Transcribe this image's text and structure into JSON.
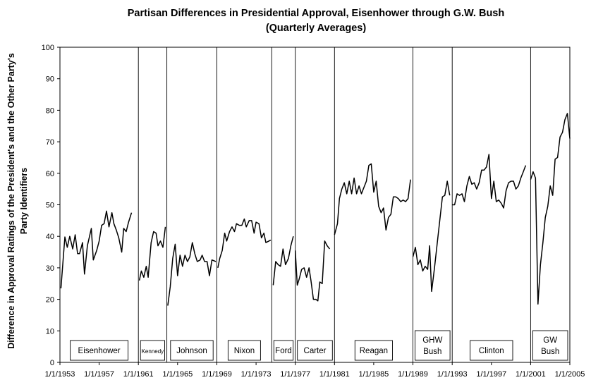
{
  "chart_data": {
    "type": "line",
    "title": "Partisan Differences in Presidential Approval, Eisenhower through G.W. Bush",
    "subtitle": "(Quarterly Averages)",
    "ylabel_line1": "Difference in Approval Ratings of the President's and the Other Party's",
    "ylabel_line2": "Party Identifiers",
    "ylim": [
      0,
      100
    ],
    "yticks": [
      0,
      10,
      20,
      30,
      40,
      50,
      60,
      70,
      80,
      90,
      100
    ],
    "xlim": [
      1953,
      2005
    ],
    "xticks": [
      {
        "value": 1953,
        "label": "1/1/1953"
      },
      {
        "value": 1957,
        "label": "1/1/1957"
      },
      {
        "value": 1961,
        "label": "1/1/1961"
      },
      {
        "value": 1965,
        "label": "1/1/1965"
      },
      {
        "value": 1969,
        "label": "1/1/1969"
      },
      {
        "value": 1973,
        "label": "1/1/1973"
      },
      {
        "value": 1977,
        "label": "1/1/1977"
      },
      {
        "value": 1981,
        "label": "1/1/1981"
      },
      {
        "value": 1985,
        "label": "1/1/1985"
      },
      {
        "value": 1989,
        "label": "1/1/1989"
      },
      {
        "value": 1993,
        "label": "1/1/1993"
      },
      {
        "value": 1997,
        "label": "1/1/1997"
      },
      {
        "value": 2001,
        "label": "1/1/2001"
      },
      {
        "value": 2005,
        "label": "1/1/2005"
      }
    ],
    "dividers": [
      1961,
      1963.9,
      1969,
      1974.6,
      1977,
      1981,
      1989,
      1993,
      2001
    ],
    "presidents": [
      {
        "name": "Eisenhower",
        "start": 1953,
        "end": 1961
      },
      {
        "name": "Kennedy",
        "start": 1961,
        "end": 1963.9
      },
      {
        "name": "Johnson",
        "start": 1963.9,
        "end": 1969
      },
      {
        "name": "Nixon",
        "start": 1969,
        "end": 1974.6
      },
      {
        "name": "Ford",
        "start": 1974.6,
        "end": 1977
      },
      {
        "name": "Carter",
        "start": 1977,
        "end": 1981
      },
      {
        "name": "Reagan",
        "start": 1981,
        "end": 1989
      },
      {
        "name": "GHW Bush",
        "start": 1989,
        "end": 1993
      },
      {
        "name": "Clinton",
        "start": 1993,
        "end": 2001
      },
      {
        "name": "GW Bush",
        "start": 2001,
        "end": 2005
      }
    ],
    "segments": [
      {
        "president": "Eisenhower",
        "points": [
          [
            1953.1,
            23.5
          ],
          [
            1953.5,
            39.8
          ],
          [
            1953.75,
            36.5
          ],
          [
            1954.0,
            40.0
          ],
          [
            1954.3,
            36.0
          ],
          [
            1954.55,
            40.5
          ],
          [
            1954.8,
            34.5
          ],
          [
            1955.0,
            34.5
          ],
          [
            1955.3,
            38.0
          ],
          [
            1955.5,
            28.0
          ],
          [
            1955.8,
            37.0
          ],
          [
            1956.2,
            42.5
          ],
          [
            1956.4,
            32.5
          ],
          [
            1956.75,
            35.5
          ],
          [
            1957.0,
            38.5
          ],
          [
            1957.25,
            43.5
          ],
          [
            1957.5,
            44.0
          ],
          [
            1957.75,
            48.0
          ],
          [
            1958.0,
            43.0
          ],
          [
            1958.3,
            47.5
          ],
          [
            1958.5,
            44.0
          ],
          [
            1958.75,
            42.0
          ],
          [
            1959.0,
            39.5
          ],
          [
            1959.3,
            35.0
          ],
          [
            1959.5,
            42.5
          ],
          [
            1959.75,
            41.5
          ],
          [
            1960.0,
            44.5
          ],
          [
            1960.3,
            47.5
          ]
        ]
      },
      {
        "president": "Kennedy",
        "points": [
          [
            1961.1,
            26.0
          ],
          [
            1961.3,
            29.0
          ],
          [
            1961.55,
            27.0
          ],
          [
            1961.8,
            30.5
          ],
          [
            1962.0,
            27.0
          ],
          [
            1962.3,
            38.0
          ],
          [
            1962.55,
            41.5
          ],
          [
            1962.8,
            41.0
          ],
          [
            1963.0,
            37.0
          ],
          [
            1963.25,
            38.5
          ],
          [
            1963.5,
            36.5
          ],
          [
            1963.75,
            43.0
          ]
        ]
      },
      {
        "president": "Johnson",
        "points": [
          [
            1964.0,
            18.0
          ],
          [
            1964.25,
            24.0
          ],
          [
            1964.5,
            33.0
          ],
          [
            1964.75,
            37.5
          ],
          [
            1965.0,
            27.5
          ],
          [
            1965.25,
            34.0
          ],
          [
            1965.5,
            30.5
          ],
          [
            1965.75,
            34.0
          ],
          [
            1966.0,
            32.0
          ],
          [
            1966.25,
            33.5
          ],
          [
            1966.5,
            38.0
          ],
          [
            1966.75,
            34.5
          ],
          [
            1967.0,
            32.0
          ],
          [
            1967.3,
            32.5
          ],
          [
            1967.5,
            34.0
          ],
          [
            1967.75,
            32.0
          ],
          [
            1968.0,
            32.0
          ],
          [
            1968.25,
            27.5
          ],
          [
            1968.5,
            32.5
          ],
          [
            1968.9,
            32.0
          ]
        ]
      },
      {
        "president": "Nixon",
        "points": [
          [
            1969.1,
            30.0
          ],
          [
            1969.3,
            33.0
          ],
          [
            1969.55,
            35.5
          ],
          [
            1969.8,
            41.0
          ],
          [
            1970.0,
            38.5
          ],
          [
            1970.3,
            41.5
          ],
          [
            1970.55,
            43.0
          ],
          [
            1970.8,
            41.5
          ],
          [
            1971.0,
            44.0
          ],
          [
            1971.3,
            43.5
          ],
          [
            1971.55,
            43.5
          ],
          [
            1971.8,
            45.5
          ],
          [
            1972.0,
            43.0
          ],
          [
            1972.3,
            45.0
          ],
          [
            1972.55,
            45.0
          ],
          [
            1972.8,
            41.0
          ],
          [
            1973.0,
            44.5
          ],
          [
            1973.3,
            44.0
          ],
          [
            1973.55,
            39.5
          ],
          [
            1973.8,
            41.0
          ],
          [
            1974.0,
            38.0
          ],
          [
            1974.3,
            38.5
          ],
          [
            1974.5,
            38.8
          ]
        ]
      },
      {
        "president": "Ford",
        "points": [
          [
            1974.75,
            24.5
          ],
          [
            1975.0,
            32.0
          ],
          [
            1975.25,
            31.0
          ],
          [
            1975.5,
            30.5
          ],
          [
            1975.75,
            36.0
          ],
          [
            1976.0,
            31.0
          ],
          [
            1976.3,
            33.0
          ],
          [
            1976.55,
            37.0
          ],
          [
            1976.8,
            40.0
          ]
        ]
      },
      {
        "president": "Carter",
        "points": [
          [
            1977.0,
            35.5
          ],
          [
            1977.2,
            24.5
          ],
          [
            1977.4,
            26.5
          ],
          [
            1977.65,
            29.5
          ],
          [
            1977.9,
            30.0
          ],
          [
            1978.15,
            27.0
          ],
          [
            1978.4,
            30.0
          ],
          [
            1978.6,
            26.0
          ],
          [
            1978.85,
            20.0
          ],
          [
            1979.1,
            20.0
          ],
          [
            1979.3,
            19.5
          ],
          [
            1979.5,
            25.5
          ],
          [
            1979.75,
            25.0
          ],
          [
            1980.0,
            38.5
          ],
          [
            1980.25,
            37.0
          ],
          [
            1980.5,
            36.0
          ]
        ]
      },
      {
        "president": "Reagan",
        "points": [
          [
            1981.0,
            40.5
          ],
          [
            1981.3,
            44.0
          ],
          [
            1981.5,
            52.0
          ],
          [
            1981.75,
            55.0
          ],
          [
            1982.0,
            57.0
          ],
          [
            1982.25,
            53.5
          ],
          [
            1982.5,
            57.5
          ],
          [
            1982.75,
            53.5
          ],
          [
            1983.0,
            58.5
          ],
          [
            1983.25,
            53.5
          ],
          [
            1983.5,
            56.0
          ],
          [
            1983.75,
            53.5
          ],
          [
            1984.0,
            55.5
          ],
          [
            1984.25,
            57.5
          ],
          [
            1984.5,
            62.5
          ],
          [
            1984.75,
            63.0
          ],
          [
            1985.0,
            54.0
          ],
          [
            1985.25,
            57.5
          ],
          [
            1985.5,
            49.5
          ],
          [
            1985.75,
            47.5
          ],
          [
            1986.0,
            49.0
          ],
          [
            1986.25,
            42.0
          ],
          [
            1986.5,
            46.0
          ],
          [
            1986.75,
            47.0
          ],
          [
            1987.0,
            52.5
          ],
          [
            1987.25,
            52.5
          ],
          [
            1987.5,
            52.0
          ],
          [
            1987.75,
            51.0
          ],
          [
            1988.0,
            51.5
          ],
          [
            1988.25,
            51.0
          ],
          [
            1988.5,
            52.0
          ],
          [
            1988.75,
            58.0
          ]
        ]
      },
      {
        "president": "GHW Bush",
        "points": [
          [
            1989.0,
            33.5
          ],
          [
            1989.25,
            36.5
          ],
          [
            1989.5,
            31.0
          ],
          [
            1989.75,
            32.5
          ],
          [
            1990.0,
            29.0
          ],
          [
            1990.25,
            30.5
          ],
          [
            1990.5,
            29.5
          ],
          [
            1990.7,
            37.0
          ],
          [
            1990.9,
            22.5
          ],
          [
            1991.2,
            30.0
          ],
          [
            1991.5,
            38.5
          ],
          [
            1991.75,
            45.5
          ],
          [
            1992.0,
            52.5
          ],
          [
            1992.25,
            53.0
          ],
          [
            1992.5,
            57.5
          ],
          [
            1992.75,
            53.0
          ]
        ]
      },
      {
        "president": "Clinton",
        "points": [
          [
            1993.0,
            50.0
          ],
          [
            1993.25,
            50.0
          ],
          [
            1993.5,
            53.5
          ],
          [
            1993.75,
            53.0
          ],
          [
            1994.0,
            53.5
          ],
          [
            1994.25,
            51.0
          ],
          [
            1994.5,
            56.0
          ],
          [
            1994.75,
            59.0
          ],
          [
            1995.0,
            56.5
          ],
          [
            1995.25,
            57.0
          ],
          [
            1995.5,
            55.0
          ],
          [
            1995.75,
            57.0
          ],
          [
            1996.0,
            61.0
          ],
          [
            1996.25,
            61.0
          ],
          [
            1996.5,
            62.0
          ],
          [
            1996.75,
            66.0
          ],
          [
            1997.0,
            52.0
          ],
          [
            1997.25,
            57.5
          ],
          [
            1997.5,
            51.0
          ],
          [
            1997.75,
            51.5
          ],
          [
            1998.0,
            50.5
          ],
          [
            1998.25,
            49.0
          ],
          [
            1998.5,
            54.5
          ],
          [
            1998.75,
            57.0
          ],
          [
            1999.0,
            57.5
          ],
          [
            1999.25,
            57.5
          ],
          [
            1999.5,
            55.0
          ],
          [
            1999.75,
            56.0
          ],
          [
            2000.0,
            58.5
          ],
          [
            2000.25,
            60.5
          ],
          [
            2000.5,
            62.5
          ]
        ]
      },
      {
        "president": "GW Bush",
        "points": [
          [
            2001.0,
            58.0
          ],
          [
            2001.25,
            60.5
          ],
          [
            2001.5,
            58.5
          ],
          [
            2001.75,
            18.5
          ],
          [
            2002.0,
            31.0
          ],
          [
            2002.25,
            38.0
          ],
          [
            2002.5,
            46.0
          ],
          [
            2002.75,
            49.5
          ],
          [
            2003.0,
            56.0
          ],
          [
            2003.25,
            53.0
          ],
          [
            2003.5,
            64.5
          ],
          [
            2003.75,
            65.0
          ],
          [
            2004.0,
            71.5
          ],
          [
            2004.25,
            73.0
          ],
          [
            2004.5,
            77.0
          ],
          [
            2004.75,
            79.0
          ],
          [
            2005.0,
            71.0
          ]
        ]
      }
    ]
  }
}
